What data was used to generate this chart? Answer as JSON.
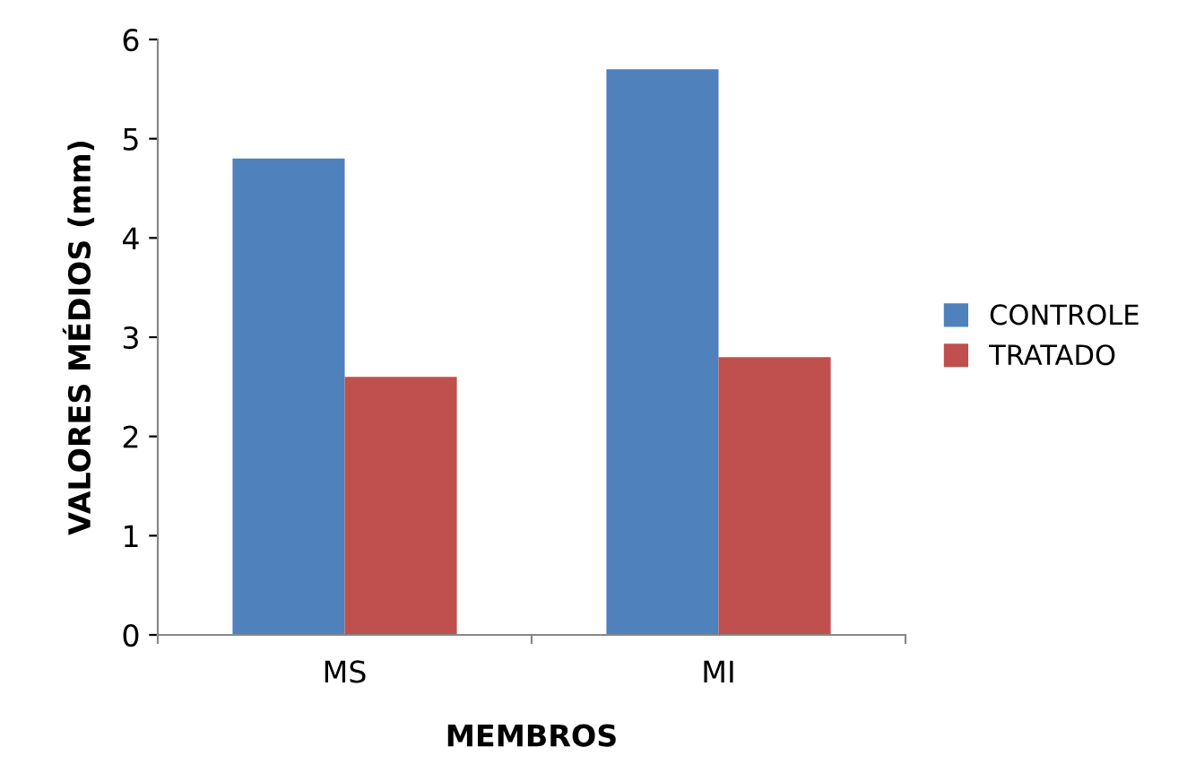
{
  "chart_data": {
    "type": "bar",
    "xlabel": "MEMBROS",
    "ylabel": "VALORES MÉDIOS (mm)",
    "categories": [
      "MS",
      "MI"
    ],
    "series": [
      {
        "name": "CONTROLE",
        "color": "#4f81bd",
        "values": [
          4.8,
          5.7
        ]
      },
      {
        "name": "TRATADO",
        "color": "#c0504d",
        "values": [
          2.6,
          2.8
        ]
      }
    ],
    "ylim": [
      0,
      6
    ],
    "yticks": [
      0,
      1,
      2,
      3,
      4,
      5,
      6
    ],
    "grid": false,
    "legend": "right"
  }
}
